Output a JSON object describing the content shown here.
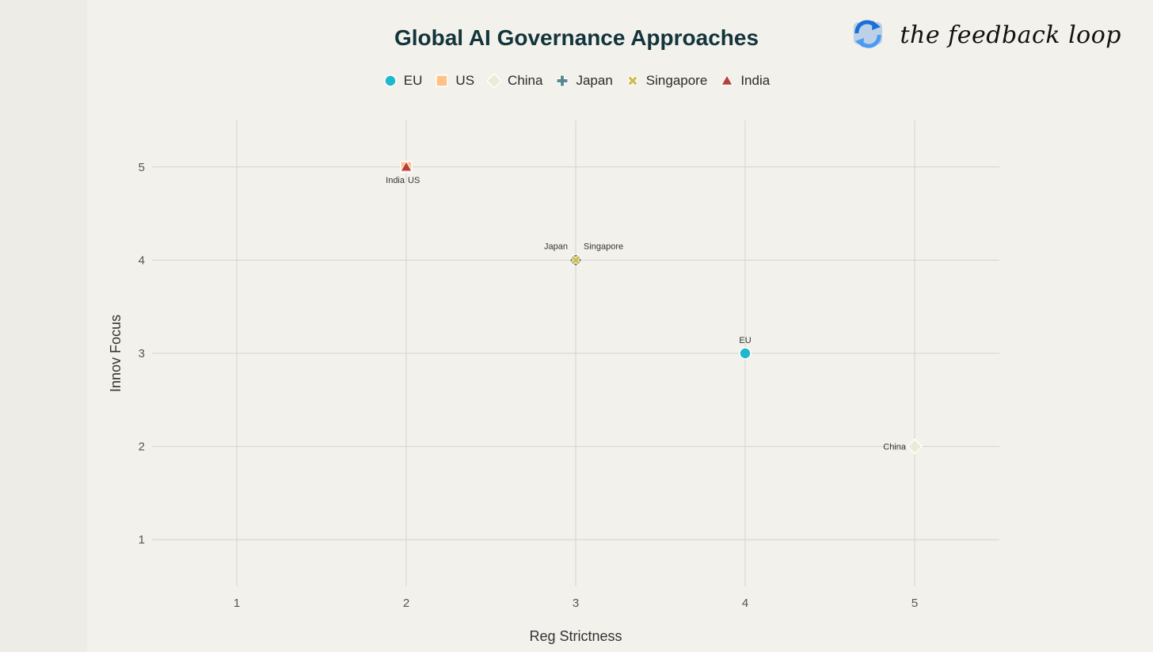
{
  "brand": {
    "logo_icon": "refresh-arrows-icon",
    "text": "the feedback loop"
  },
  "chart_data": {
    "type": "scatter",
    "title": "Global AI Governance Approaches",
    "xlabel": "Reg Strictness",
    "ylabel": "Innov Focus",
    "xlim": [
      0.5,
      5.5
    ],
    "ylim": [
      0.5,
      5.5
    ],
    "xticks": [
      "1",
      "2",
      "3",
      "4",
      "5"
    ],
    "yticks": [
      "1",
      "2",
      "3",
      "4",
      "5"
    ],
    "grid": true,
    "legend_position": "top-center",
    "series": [
      {
        "name": "EU",
        "x": 4,
        "y": 3,
        "symbol": "circle",
        "color": "#1fb8cd",
        "label": "EU",
        "label_pos": "top"
      },
      {
        "name": "US",
        "x": 2,
        "y": 5,
        "symbol": "square",
        "color": "#ffc185",
        "label": "US",
        "label_pos": "bottom-right"
      },
      {
        "name": "China",
        "x": 5,
        "y": 2,
        "symbol": "diamond",
        "color": "#ecebd5",
        "label": "China",
        "label_pos": "left"
      },
      {
        "name": "Japan",
        "x": 3,
        "y": 4,
        "symbol": "cross",
        "color": "#5d878f",
        "label": "Japan",
        "label_pos": "top-left"
      },
      {
        "name": "Singapore",
        "x": 3,
        "y": 4,
        "symbol": "x",
        "color": "#d2ba4c",
        "label": "Singapore",
        "label_pos": "top-right"
      },
      {
        "name": "India",
        "x": 2,
        "y": 5,
        "symbol": "triangle",
        "color": "#b4413c",
        "label": "India",
        "label_pos": "bottom-left"
      }
    ]
  }
}
